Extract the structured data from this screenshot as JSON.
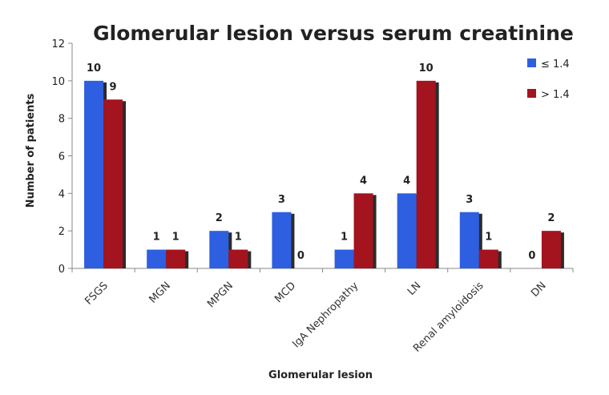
{
  "chart_data": {
    "type": "bar",
    "title": "Glomerular lesion versus serum creatinine",
    "xlabel": "Glomerular lesion",
    "ylabel": "Number of patients",
    "ylim": [
      0,
      12
    ],
    "yticks": [
      0,
      2,
      4,
      6,
      8,
      10,
      12
    ],
    "grid": false,
    "legend_position": "top-right",
    "categories": [
      "FSGS",
      "MGN",
      "MPGN",
      "MCD",
      "IgA Nephropathy",
      "LN",
      "Renal amyloidosis",
      "DN"
    ],
    "series": [
      {
        "name": "≤ 1.4",
        "color": "#2e5fe0",
        "values": [
          10,
          1,
          2,
          3,
          1,
          4,
          3,
          0
        ]
      },
      {
        "name": "> 1.4",
        "color": "#a3141e",
        "values": [
          9,
          1,
          1,
          0,
          4,
          10,
          1,
          2
        ]
      }
    ],
    "data_labels": [
      [
        "10",
        "1",
        "2",
        "3",
        "1",
        "4",
        "3",
        "0"
      ],
      [
        "9",
        "1",
        "1",
        "0",
        "4",
        "10",
        "1",
        "2"
      ]
    ]
  }
}
